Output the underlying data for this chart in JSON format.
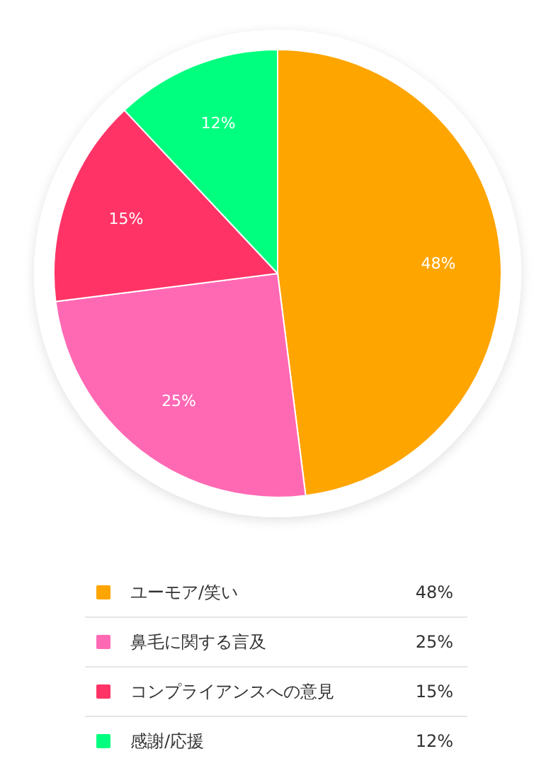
{
  "chart_data": {
    "type": "pie",
    "categories": [
      "ユーモア/笑い",
      "鼻毛に関する言及",
      "コンプライアンスへの意見",
      "感謝/応援"
    ],
    "values": [
      48,
      25,
      15,
      12
    ],
    "colors": [
      "#ffa500",
      "#ff69b4",
      "#ff3366",
      "#00ff7f"
    ],
    "value_labels": [
      "48%",
      "25%",
      "15%",
      "12%"
    ],
    "legend": "bottom"
  }
}
